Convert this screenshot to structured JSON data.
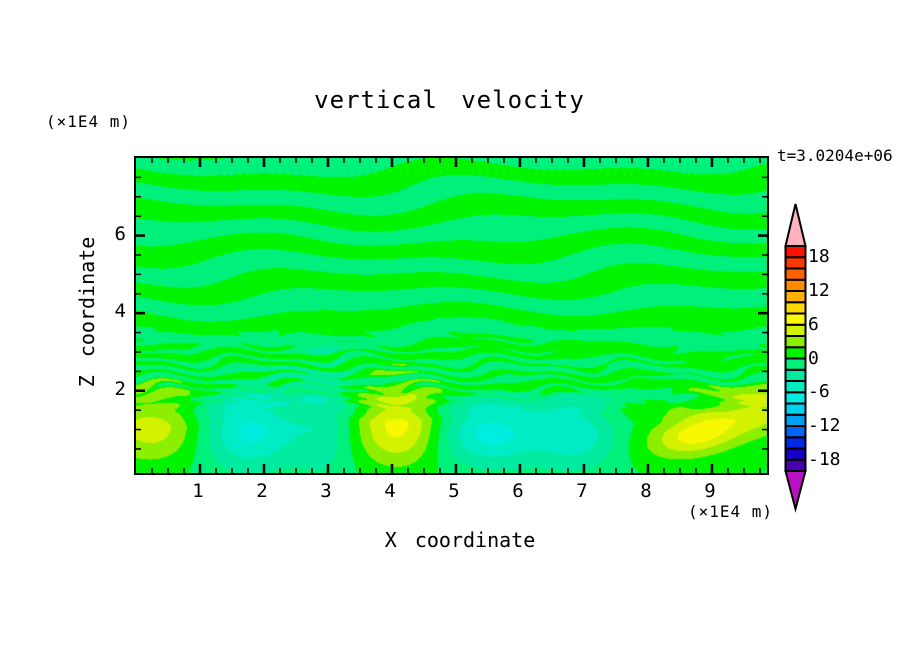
{
  "page": {
    "background": "#ffffff"
  },
  "labels": {
    "title": "vertical velocity",
    "time": "t=3.0204e+06",
    "y_unit": "(×1E4 m)",
    "x_unit": "(×1E4 m)",
    "x_axis_title": "X coordinate",
    "y_axis_title": "Z coordinate"
  },
  "chart_data": {
    "type": "filled_contour",
    "title": "vertical velocity",
    "time_annotation": "t=3.0204e+06",
    "xlabel": "X coordinate",
    "xunit": "(×1E4 m)",
    "ylabel": "Z coordinate",
    "yunit": "(×1E4 m)",
    "x_range": [
      0,
      9.86
    ],
    "z_range": [
      -0.12,
      8.0
    ],
    "x_major_ticks": [
      1,
      2,
      3,
      4,
      5,
      6,
      7,
      8,
      9
    ],
    "x_minor_step": 0.25,
    "y_major_ticks": [
      2,
      4,
      6
    ],
    "y_minor_step": 0.5,
    "grid": false,
    "legend_position": "right-colorbar",
    "contour_levels": {
      "min": -20,
      "max": 20,
      "step": 2
    },
    "colorbar_labels": [
      18,
      12,
      6,
      0,
      -6,
      -12,
      -18
    ],
    "palette_low_to_high": [
      "#4a00b0",
      "#1400c8",
      "#0028e8",
      "#0064f4",
      "#00a0f0",
      "#00d2ee",
      "#00eee0",
      "#00ecc4",
      "#00eba0",
      "#00f07c",
      "#00f400",
      "#8cee00",
      "#d2f200",
      "#f8f800",
      "#ffd800",
      "#ffb000",
      "#ff8a00",
      "#ff6000",
      "#ff3800",
      "#ff1000"
    ],
    "over_color": "#ffb2bf",
    "under_color": "#bb11c4",
    "field_model": {
      "description": "weak (|w|<2) horizontal gravity-wave stripes aloft, braided fine filaments near z=2-3.2, stronger convective cells below z=2",
      "waves": {
        "stripe_freq_z": 6.9,
        "stripe_amp": 1.55,
        "filament_freq_z": 24,
        "filament_band_center_z": 2.55,
        "filament_band_width_z": 0.8,
        "stripe_fade_zmin": 0.9,
        "stripe_fade_zmax": 2.05,
        "bottom_bias": -0.25
      },
      "cells": [
        {
          "x": 0.3,
          "z": 1.05,
          "sx": 0.55,
          "sz": 0.6,
          "amp": 4.3,
          "rot": 0
        },
        {
          "x": 0.3,
          "z": 1.0,
          "sx": 1.0,
          "sz": 0.9,
          "amp": 1.1,
          "rot": 0
        },
        {
          "x": 1.75,
          "z": 1.0,
          "sx": 0.55,
          "sz": 0.68,
          "amp": -6.2,
          "rot": 0
        },
        {
          "x": 1.8,
          "z": 1.0,
          "sx": 1.0,
          "sz": 0.9,
          "amp": -0.9,
          "rot": 0
        },
        {
          "x": 2.95,
          "z": 1.2,
          "sx": 0.34,
          "sz": 1.05,
          "amp": -3.4,
          "rot": 0
        },
        {
          "x": 4.12,
          "z": 1.05,
          "sx": 0.46,
          "sz": 0.65,
          "amp": 6.2,
          "rot": 0
        },
        {
          "x": 4.1,
          "z": 1.0,
          "sx": 1.1,
          "sz": 1.0,
          "amp": 1.2,
          "rot": 0
        },
        {
          "x": 5.5,
          "z": 0.95,
          "sx": 0.6,
          "sz": 0.58,
          "amp": -6.3,
          "rot": 0
        },
        {
          "x": 5.5,
          "z": 0.9,
          "sx": 1.1,
          "sz": 0.9,
          "amp": -0.9,
          "rot": 0
        },
        {
          "x": 6.9,
          "z": 0.9,
          "sx": 0.44,
          "sz": 0.62,
          "amp": -4.8,
          "rot": 0
        },
        {
          "x": 8.78,
          "z": 0.9,
          "sx": 0.55,
          "sz": 0.34,
          "amp": 6.4,
          "rot": 0.5
        },
        {
          "x": 8.8,
          "z": 1.0,
          "sx": 0.95,
          "sz": 0.8,
          "amp": 1.0,
          "rot": 0
        },
        {
          "x": 9.75,
          "z": 1.55,
          "sx": 0.42,
          "sz": 0.45,
          "amp": 3.8,
          "rot": 0
        }
      ]
    }
  }
}
